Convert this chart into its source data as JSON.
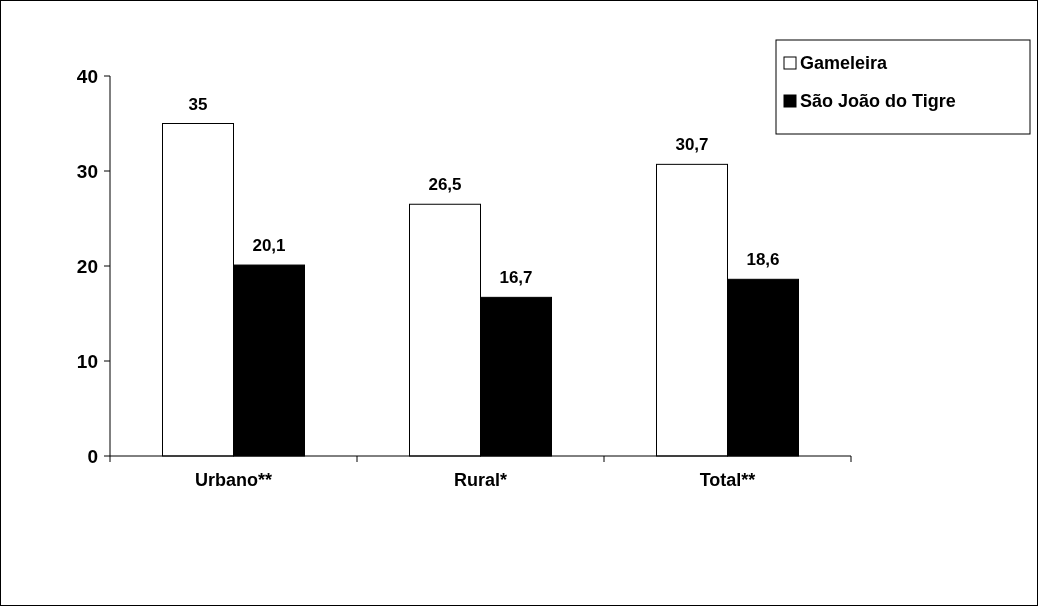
{
  "chart_data": {
    "type": "bar",
    "categories": [
      "Urbano**",
      "Rural*",
      "Total**"
    ],
    "series": [
      {
        "name": "Gameleira",
        "color": "#ffffff",
        "values": [
          35,
          26.5,
          30.7
        ],
        "value_labels": [
          "35",
          "26,5",
          "30,7"
        ]
      },
      {
        "name": "São João do Tigre",
        "color": "#000000",
        "values": [
          20.1,
          16.7,
          18.6
        ],
        "value_labels": [
          "20,1",
          "16,7",
          "18,6"
        ]
      }
    ],
    "ylim": [
      0,
      40
    ],
    "yticks": [
      0,
      10,
      20,
      30,
      40
    ],
    "grid": false,
    "legend": "top right"
  }
}
